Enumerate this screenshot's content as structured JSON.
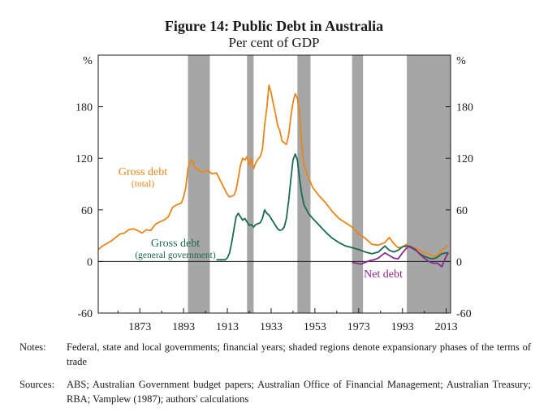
{
  "title": "Figure 14: Public Debt in Australia",
  "subtitle": "Per cent of GDP",
  "notes": {
    "label": "Notes:",
    "text": "Federal, state and local governments; financial years; shaded regions denote expansionary phases of the terms of trade"
  },
  "sources": {
    "label": "Sources:",
    "text": "ABS; Australian Government budget papers; Australian Office of Financial Management; Australian Treasury; RBA; Vamplew (1987); authors' calculations"
  },
  "colors": {
    "gross_total": "#e8861a",
    "gross_general": "#1a6b4e",
    "net": "#8a2a8e",
    "shade": "#a6a6a6"
  },
  "chart_data": {
    "type": "line",
    "title": "Figure 14: Public Debt in Australia",
    "subtitle": "Per cent of GDP",
    "y_unit_left": "%",
    "y_unit_right": "%",
    "xlim": [
      1854,
      2015
    ],
    "ylim": [
      -60,
      240
    ],
    "x_ticks": [
      "1873",
      "1893",
      "1913",
      "1933",
      "1953",
      "1973",
      "1993",
      "2013"
    ],
    "y_ticks": [
      "-60",
      "0",
      "60",
      "120",
      "180"
    ],
    "shaded_periods": [
      [
        1895,
        1905
      ],
      [
        1922,
        1925
      ],
      [
        1945,
        1951
      ],
      [
        1970,
        1975
      ],
      [
        1995,
        2015
      ]
    ],
    "series": [
      {
        "name": "Gross debt (total)",
        "label_line1": "Gross debt",
        "label_line2": "(total)",
        "x": [
          1854,
          1856,
          1858,
          1860,
          1862,
          1864,
          1866,
          1868,
          1870,
          1872,
          1874,
          1876,
          1878,
          1880,
          1882,
          1884,
          1886,
          1888,
          1890,
          1892,
          1893,
          1894,
          1895,
          1896,
          1897,
          1898,
          1900,
          1902,
          1904,
          1906,
          1908,
          1910,
          1912,
          1913,
          1914,
          1916,
          1917,
          1918,
          1919,
          1920,
          1921,
          1922,
          1923,
          1924,
          1925,
          1926,
          1927,
          1928,
          1929,
          1930,
          1931,
          1932,
          1933,
          1934,
          1935,
          1936,
          1937,
          1938,
          1939,
          1940,
          1941,
          1942,
          1943,
          1944,
          1945,
          1946,
          1947,
          1948,
          1950,
          1952,
          1955,
          1958,
          1961,
          1964,
          1967,
          1970,
          1973,
          1976,
          1979,
          1982,
          1985,
          1987,
          1989,
          1991,
          1993,
          1995,
          1996,
          1997,
          1999,
          2001,
          2003,
          2005,
          2007,
          2009,
          2011,
          2013,
          2014
        ],
        "values": [
          14,
          18,
          21,
          24,
          28,
          32,
          33,
          37,
          38,
          36,
          33,
          37,
          36,
          43,
          46,
          48,
          52,
          63,
          66,
          68,
          75,
          86,
          108,
          116,
          118,
          110,
          106,
          104,
          106,
          102,
          103,
          93,
          83,
          78,
          75,
          77,
          83,
          97,
          112,
          120,
          118,
          122,
          112,
          120,
          108,
          115,
          119,
          122,
          130,
          158,
          178,
          205,
          196,
          183,
          172,
          158,
          152,
          140,
          138,
          136,
          147,
          168,
          185,
          195,
          190,
          172,
          136,
          112,
          98,
          86,
          76,
          68,
          58,
          50,
          45,
          40,
          32,
          27,
          20,
          19,
          22,
          28,
          21,
          16,
          17,
          20,
          18,
          17,
          15,
          13,
          10,
          9,
          6,
          7,
          13,
          17,
          18
        ]
      },
      {
        "name": "Gross debt (general government)",
        "label_line1": "Gross debt",
        "label_line2": "(general government)",
        "x": [
          1908,
          1911,
          1912,
          1913,
          1914,
          1915,
          1916,
          1917,
          1918,
          1919,
          1920,
          1921,
          1922,
          1923,
          1924,
          1925,
          1926,
          1927,
          1928,
          1929,
          1930,
          1931,
          1932,
          1933,
          1934,
          1935,
          1936,
          1937,
          1938,
          1939,
          1940,
          1941,
          1942,
          1943,
          1944,
          1945,
          1946,
          1947,
          1948,
          1950,
          1952,
          1955,
          1958,
          1961,
          1964,
          1967,
          1970,
          1973,
          1976,
          1979,
          1982,
          1985,
          1987,
          1989,
          1991,
          1993,
          1995,
          1996,
          1997,
          1999,
          2001,
          2003,
          2005,
          2007,
          2009,
          2011,
          2013,
          2014
        ],
        "values": [
          2,
          2,
          2,
          4,
          10,
          22,
          37,
          52,
          56,
          52,
          48,
          50,
          46,
          42,
          43,
          40,
          43,
          44,
          45,
          50,
          60,
          56,
          54,
          50,
          46,
          42,
          38,
          36,
          37,
          40,
          50,
          70,
          95,
          118,
          125,
          118,
          96,
          78,
          66,
          56,
          50,
          42,
          34,
          27,
          22,
          18,
          16,
          14,
          11,
          9,
          11,
          18,
          13,
          11,
          13,
          17,
          18,
          17,
          16,
          13,
          9,
          6,
          4,
          3,
          5,
          9,
          10,
          10
        ]
      },
      {
        "name": "Net debt",
        "label_line1": "Net debt",
        "x": [
          1970,
          1972,
          1974,
          1976,
          1978,
          1980,
          1982,
          1985,
          1987,
          1989,
          1991,
          1993,
          1995,
          1996,
          1997,
          1999,
          2001,
          2003,
          2005,
          2007,
          2009,
          2011,
          2013,
          2014
        ],
        "values": [
          -1,
          -2,
          -3,
          -1,
          1,
          2,
          4,
          10,
          7,
          4,
          3,
          10,
          16,
          18,
          17,
          14,
          8,
          4,
          0,
          -2,
          -2,
          -6,
          6,
          10
        ]
      }
    ]
  }
}
